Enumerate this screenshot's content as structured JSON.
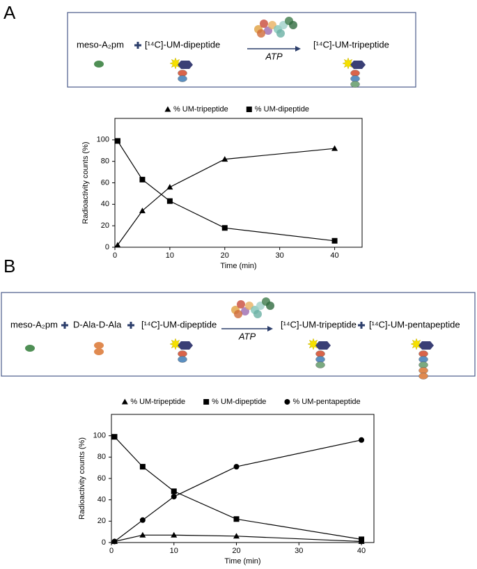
{
  "panels": [
    {
      "label": "A",
      "scheme": {
        "reactants": [
          "meso-A₂pm",
          "[¹⁴C]-UM-dipeptide"
        ],
        "arrow": "ATP",
        "products": [
          "[¹⁴C]-UM-tripeptide"
        ]
      }
    },
    {
      "label": "B",
      "scheme": {
        "reactants": [
          "meso-A₂pm",
          "D-Ala-D-Ala",
          "[¹⁴C]-UM-dipeptide"
        ],
        "arrow": "ATP",
        "products": [
          "[¹⁴C]-UM-tripeptide",
          "[¹⁴C]-UM-pentapeptide"
        ]
      }
    }
  ],
  "chart_data": [
    {
      "type": "line",
      "x_label": "Time (min)",
      "y_label": "Radioactivity counts (%)",
      "x": [
        0.5,
        5,
        10,
        20,
        40
      ],
      "series": [
        {
          "name": "% UM-tripeptide",
          "color": "#000000",
          "marker": "triangle",
          "values": [
            2,
            34,
            56,
            82,
            92
          ]
        },
        {
          "name": "% UM-dipeptide",
          "color": "#000000",
          "marker": "square",
          "values": [
            99,
            63,
            43,
            18,
            6
          ]
        }
      ],
      "xlim": [
        0,
        45
      ],
      "xticks": [
        0,
        10,
        20,
        30,
        40
      ],
      "ylim": [
        0,
        120
      ],
      "yticks": [
        0,
        20,
        40,
        60,
        80,
        100
      ]
    },
    {
      "type": "line",
      "x_label": "Time (min)",
      "y_label": "Radioactivity counts (%)",
      "x": [
        0.5,
        5,
        10,
        20,
        40
      ],
      "series": [
        {
          "name": "% UM-tripeptide",
          "color": "#000000",
          "marker": "triangle",
          "values": [
            1,
            7,
            7,
            6,
            1
          ]
        },
        {
          "name": "% UM-dipeptide",
          "color": "#000000",
          "marker": "square",
          "values": [
            99,
            71,
            48,
            22,
            3
          ]
        },
        {
          "name": "% UM-pentapeptide",
          "color": "#000000",
          "marker": "circle",
          "values": [
            1,
            21,
            43,
            71,
            96
          ]
        }
      ],
      "xlim": [
        0,
        42
      ],
      "xticks": [
        0,
        10,
        20,
        30,
        40
      ],
      "ylim": [
        0,
        120
      ],
      "yticks": [
        0,
        20,
        40,
        60,
        80,
        100
      ]
    }
  ]
}
